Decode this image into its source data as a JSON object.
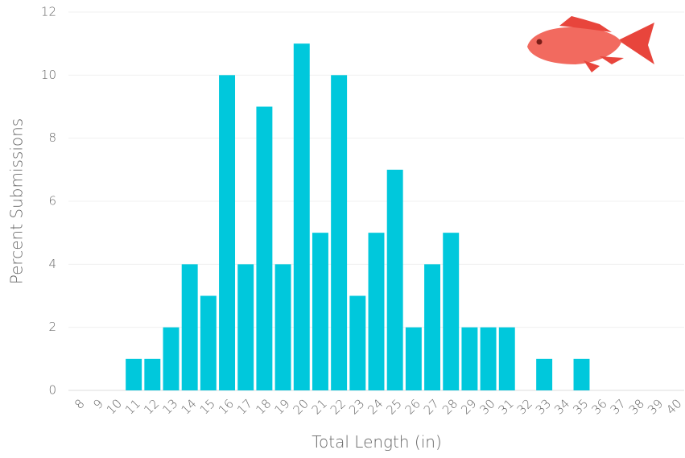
{
  "chart_data": {
    "type": "bar",
    "x_label": "Total Length (in)",
    "y_label": "Percent Submissions",
    "categories": [
      "8",
      "9",
      "10",
      "11",
      "12",
      "13",
      "14",
      "15",
      "16",
      "17",
      "18",
      "19",
      "20",
      "21",
      "22",
      "23",
      "24",
      "25",
      "26",
      "27",
      "28",
      "29",
      "30",
      "31",
      "32",
      "33",
      "34",
      "35",
      "36",
      "37",
      "38",
      "39",
      "40"
    ],
    "values": [
      0,
      0,
      0,
      1,
      1,
      2,
      4,
      3,
      10,
      4,
      9,
      4,
      11,
      5,
      10,
      3,
      5,
      7,
      2,
      4,
      5,
      2,
      2,
      2,
      0,
      1,
      0,
      1,
      0,
      0,
      0,
      0,
      0
    ],
    "color": "#00c8dc",
    "ylim": [
      0,
      12
    ],
    "yticks": [
      0,
      2,
      4,
      6,
      8,
      10,
      12
    ],
    "grid": true
  }
}
